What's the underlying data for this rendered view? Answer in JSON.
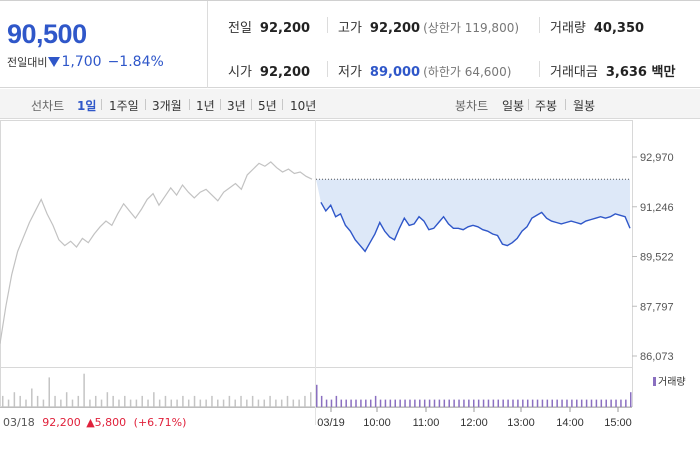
{
  "summary": {
    "price": "90,500",
    "change_label": "전일대비",
    "change": "1,700",
    "change_pct": "−1.84%",
    "prev_close": {
      "label": "전일",
      "value": "92,200"
    },
    "open": {
      "label": "시가",
      "value": "92,200"
    },
    "high": {
      "label": "고가",
      "value": "92,200",
      "sub": "(상한가 119,800)"
    },
    "low": {
      "label": "저가",
      "value": "89,000",
      "sub": "(하한가 64,600)"
    },
    "volume": {
      "label": "거래량",
      "value": "40,350"
    },
    "turnover": {
      "label": "거래대금",
      "value": "3,636 백만"
    }
  },
  "line_periods": {
    "label": "선차트",
    "items": [
      "1일",
      "1주일",
      "3개월",
      "1년",
      "3년",
      "5년",
      "10년"
    ],
    "active": "1일"
  },
  "candle_periods": {
    "label": "봉차트",
    "items": [
      "일봉",
      "주봉",
      "월봉"
    ]
  },
  "colors": {
    "down": "#2f57c9",
    "up": "#e0213b",
    "prev_line": "#c2c2c2",
    "volume": "#8a6fc0"
  },
  "chart_data": {
    "type": "line",
    "y_ticks": [
      "92,970",
      "91,246",
      "89,522",
      "87,797",
      "86,073"
    ],
    "ylim": [
      86073,
      92970
    ],
    "x_ticks": [
      "03/18",
      "03/19",
      "10:00",
      "11:00",
      "12:00",
      "13:00",
      "14:00",
      "15:00"
    ],
    "prev_day": {
      "date_label": "03/18",
      "close": "92,200",
      "change": "5,800",
      "change_pct": "(+6.71%)",
      "values": [
        86500,
        87800,
        88900,
        89700,
        90200,
        90700,
        91100,
        91500,
        91000,
        90600,
        90100,
        89900,
        90050,
        89850,
        90150,
        90000,
        90300,
        90550,
        90750,
        90600,
        91000,
        91350,
        91100,
        90850,
        91150,
        91500,
        91700,
        91300,
        91600,
        91900,
        91650,
        92000,
        91750,
        91550,
        91750,
        91850,
        91650,
        91450,
        91750,
        91900,
        92050,
        91850,
        92350,
        92550,
        92750,
        92650,
        92800,
        92600,
        92450,
        92550,
        92400,
        92450,
        92300,
        92200
      ]
    },
    "today": {
      "date_label": "03/19",
      "values": [
        92200,
        91400,
        91100,
        91300,
        90900,
        91000,
        90600,
        90400,
        90100,
        89900,
        89700,
        90000,
        90300,
        90700,
        90400,
        90200,
        90100,
        90500,
        90850,
        90600,
        90650,
        90900,
        90750,
        90450,
        90500,
        90700,
        90900,
        90650,
        90500,
        90500,
        90450,
        90550,
        90600,
        90550,
        90450,
        90400,
        90300,
        90250,
        89950,
        89900,
        90000,
        90150,
        90400,
        90550,
        90850,
        90950,
        91050,
        90850,
        90750,
        90700,
        90650,
        90700,
        90750,
        90700,
        90650,
        90750,
        90800,
        90850,
        90900,
        90850,
        90900,
        91000,
        90950,
        90900,
        90500
      ]
    },
    "volume_legend": "거래량",
    "prev_volume": [
      3,
      2,
      4,
      3,
      2,
      5,
      3,
      2,
      8,
      3,
      2,
      4,
      2,
      3,
      9,
      2,
      3,
      2,
      4,
      3,
      2,
      3,
      2,
      2,
      3,
      2,
      4,
      2,
      3,
      2,
      2,
      3,
      2,
      3,
      2,
      2,
      3,
      2,
      2,
      3,
      2,
      3,
      2,
      3,
      2,
      2,
      3,
      2,
      2,
      3,
      2,
      2,
      3,
      4
    ],
    "today_volume": [
      6,
      3,
      2,
      2,
      3,
      2,
      2,
      2,
      2,
      2,
      2,
      2,
      3,
      2,
      2,
      2,
      2,
      2,
      2,
      2,
      2,
      2,
      2,
      2,
      2,
      2,
      2,
      2,
      2,
      2,
      2,
      2,
      2,
      2,
      2,
      2,
      2,
      2,
      2,
      2,
      2,
      2,
      2,
      2,
      2,
      2,
      2,
      2,
      2,
      2,
      2,
      2,
      2,
      2,
      2,
      2,
      2,
      2,
      2,
      2,
      2,
      2,
      2,
      2,
      4
    ]
  }
}
